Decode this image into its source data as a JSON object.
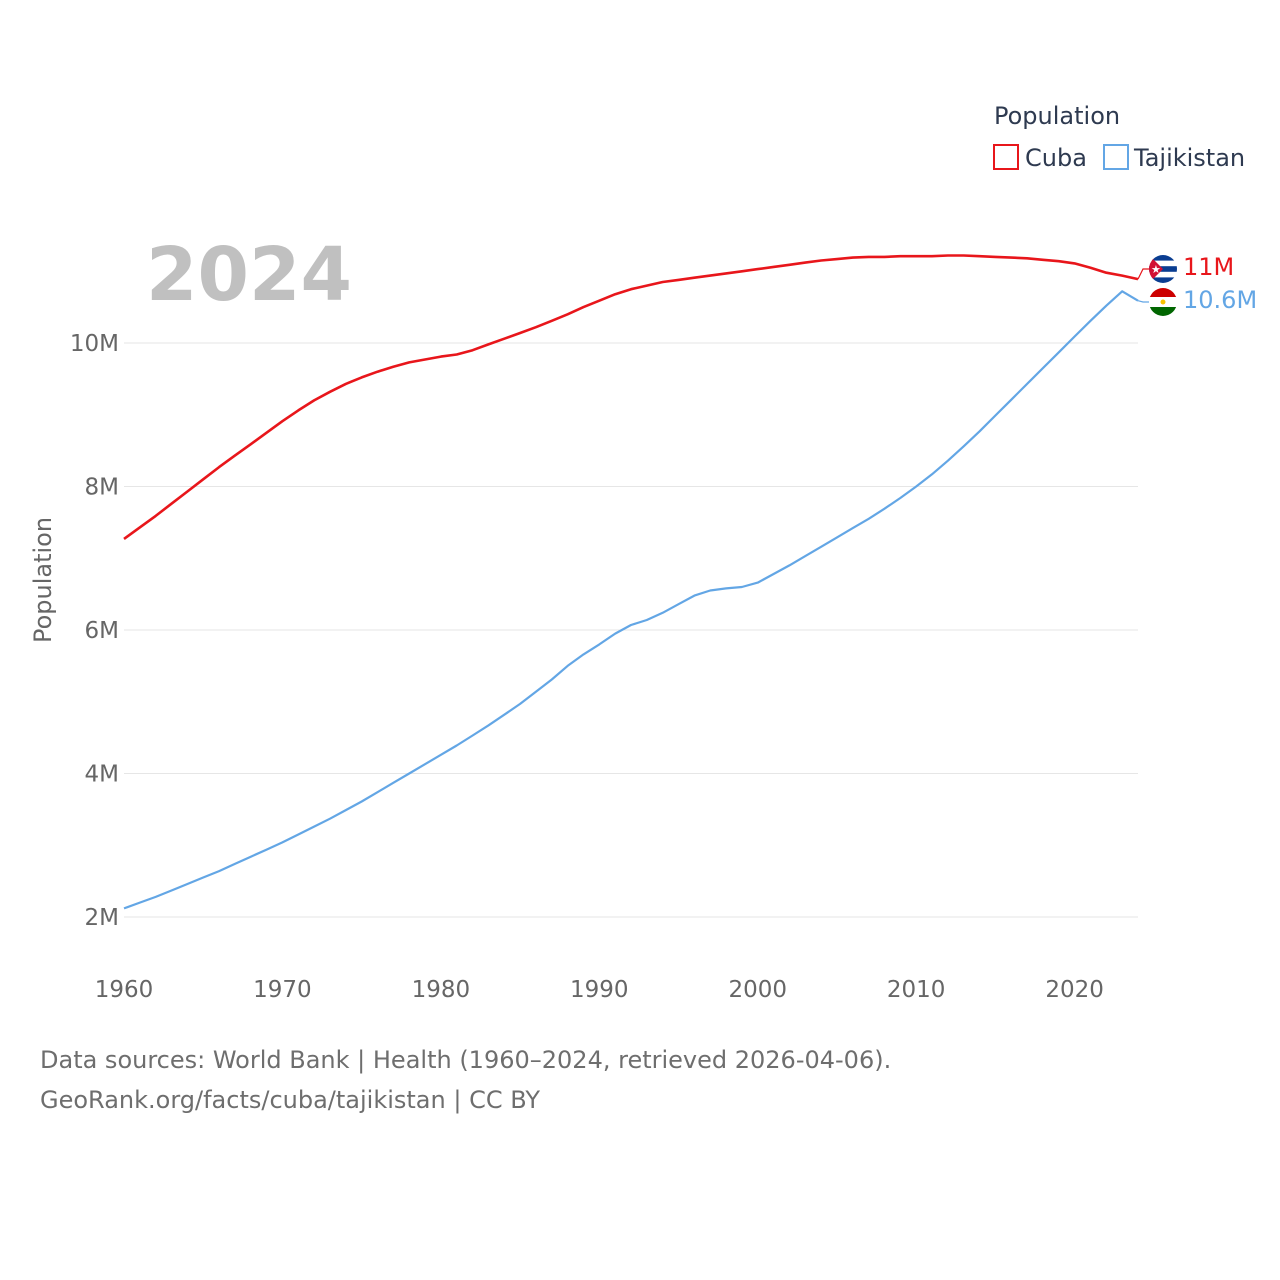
{
  "chart_data": {
    "type": "line",
    "year_label": "2024",
    "ylabel": "Population",
    "legend_title": "Population",
    "xlim": [
      1960,
      2024
    ],
    "ylim": [
      1.75,
      11.55
    ],
    "x_ticks": [
      1960,
      1970,
      1980,
      1990,
      2000,
      2010,
      2020
    ],
    "x_tick_labels": [
      "1960",
      "1970",
      "1980",
      "1990",
      "2000",
      "2010",
      "2020"
    ],
    "y_ticks": [
      2,
      4,
      6,
      8,
      10
    ],
    "y_tick_labels": [
      "2M",
      "4M",
      "6M",
      "8M",
      "10M"
    ],
    "x": [
      1960,
      1961,
      1962,
      1963,
      1964,
      1965,
      1966,
      1967,
      1968,
      1969,
      1970,
      1971,
      1972,
      1973,
      1974,
      1975,
      1976,
      1977,
      1978,
      1979,
      1980,
      1981,
      1982,
      1983,
      1984,
      1985,
      1986,
      1987,
      1988,
      1989,
      1990,
      1991,
      1992,
      1993,
      1994,
      1995,
      1996,
      1997,
      1998,
      1999,
      2000,
      2001,
      2002,
      2003,
      2004,
      2005,
      2006,
      2007,
      2008,
      2009,
      2010,
      2011,
      2012,
      2013,
      2014,
      2015,
      2016,
      2017,
      2018,
      2019,
      2020,
      2021,
      2022,
      2023,
      2024
    ],
    "series": [
      {
        "name": "Cuba",
        "color": "#e8161b",
        "end_label": "11M",
        "flag": "cuba-flag",
        "values": [
          7.27,
          7.43,
          7.59,
          7.76,
          7.93,
          8.1,
          8.27,
          8.43,
          8.59,
          8.75,
          8.91,
          9.06,
          9.2,
          9.32,
          9.43,
          9.52,
          9.6,
          9.67,
          9.73,
          9.77,
          9.81,
          9.84,
          9.9,
          9.98,
          10.06,
          10.14,
          10.22,
          10.31,
          10.4,
          10.5,
          10.59,
          10.68,
          10.75,
          10.8,
          10.85,
          10.88,
          10.91,
          10.94,
          10.97,
          11.0,
          11.03,
          11.06,
          11.09,
          11.12,
          11.15,
          11.17,
          11.19,
          11.2,
          11.2,
          11.21,
          11.21,
          11.21,
          11.22,
          11.22,
          11.21,
          11.2,
          11.19,
          11.18,
          11.16,
          11.14,
          11.11,
          11.05,
          10.98,
          10.94,
          10.89
        ]
      },
      {
        "name": "Tajikistan",
        "color": "#63a6e5",
        "end_label": "10.6M",
        "flag": "tajikistan-flag",
        "values": [
          2.12,
          2.2,
          2.28,
          2.37,
          2.46,
          2.55,
          2.64,
          2.74,
          2.84,
          2.94,
          3.04,
          3.15,
          3.26,
          3.37,
          3.49,
          3.61,
          3.74,
          3.87,
          4.0,
          4.13,
          4.26,
          4.39,
          4.53,
          4.67,
          4.82,
          4.97,
          5.14,
          5.31,
          5.5,
          5.66,
          5.8,
          5.95,
          6.07,
          6.14,
          6.24,
          6.36,
          6.48,
          6.55,
          6.58,
          6.6,
          6.66,
          6.78,
          6.9,
          7.03,
          7.16,
          7.29,
          7.42,
          7.55,
          7.69,
          7.84,
          8.0,
          8.17,
          8.36,
          8.56,
          8.77,
          8.99,
          9.21,
          9.43,
          9.65,
          9.87,
          10.09,
          10.31,
          10.52,
          10.72,
          10.59
        ]
      }
    ]
  },
  "footer": {
    "line1": "Data sources: World Bank | Health (1960–2024, retrieved 2026-04-06).",
    "line2": "GeoRank.org/facts/cuba/tajikistan | CC BY"
  }
}
